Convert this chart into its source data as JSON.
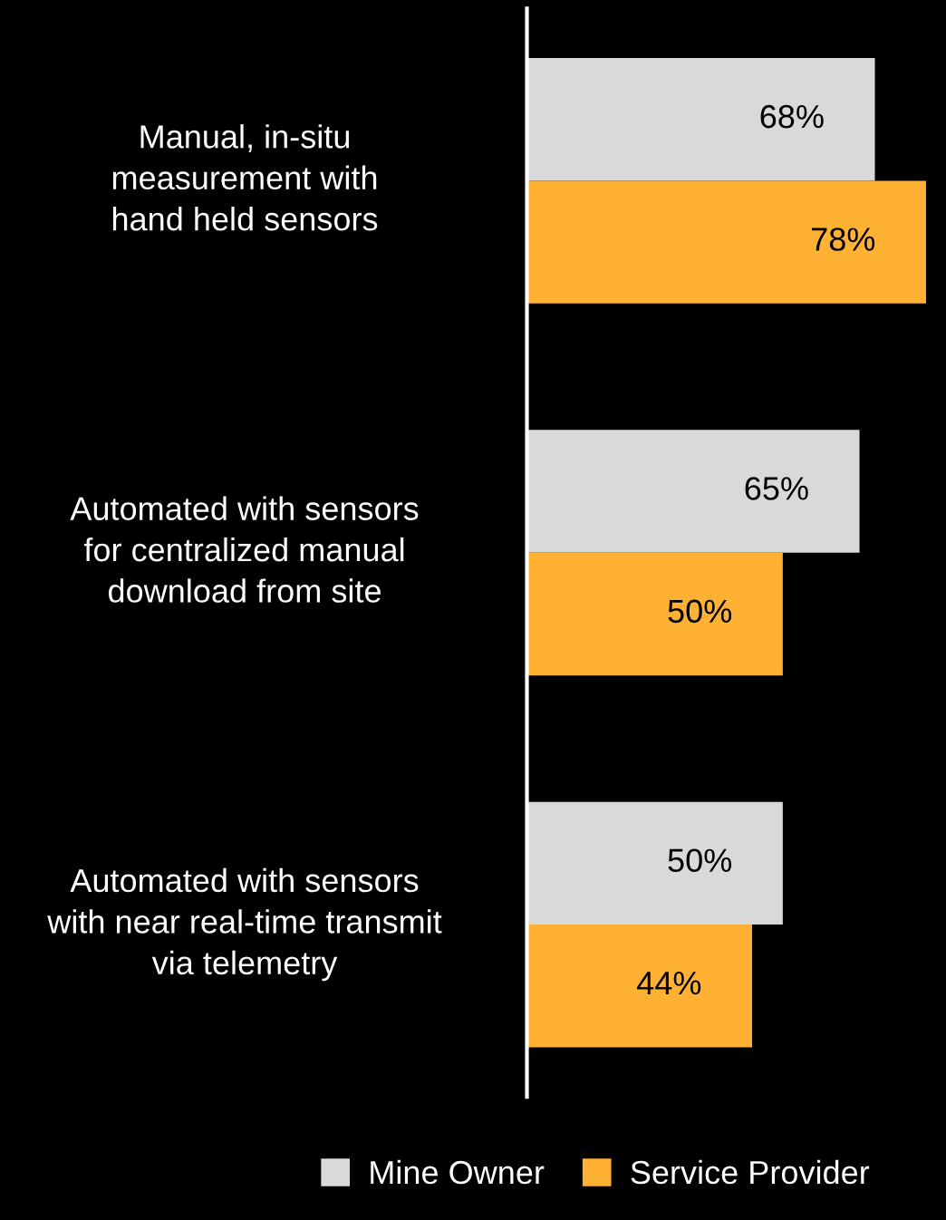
{
  "chart_data": {
    "type": "bar",
    "orientation": "horizontal",
    "categories": [
      "Manual, in-situ\nmeasurement with\nhand held sensors",
      "Automated with sensors\nfor centralized manual\ndownload from site",
      "Automated with sensors\nwith near real-time transmit\nvia telemetry"
    ],
    "series": [
      {
        "name": "Mine Owner",
        "color": "#d9d9d9",
        "values": [
          68,
          65,
          50
        ],
        "value_labels": [
          "68%",
          "65%",
          "50%"
        ]
      },
      {
        "name": "Service Provider",
        "color": "#ffb133",
        "values": [
          78,
          50,
          44
        ],
        "value_labels": [
          "78%",
          "50%",
          "44%"
        ]
      }
    ],
    "legend": "bottom",
    "grid": false,
    "tick_labels": "y"
  }
}
